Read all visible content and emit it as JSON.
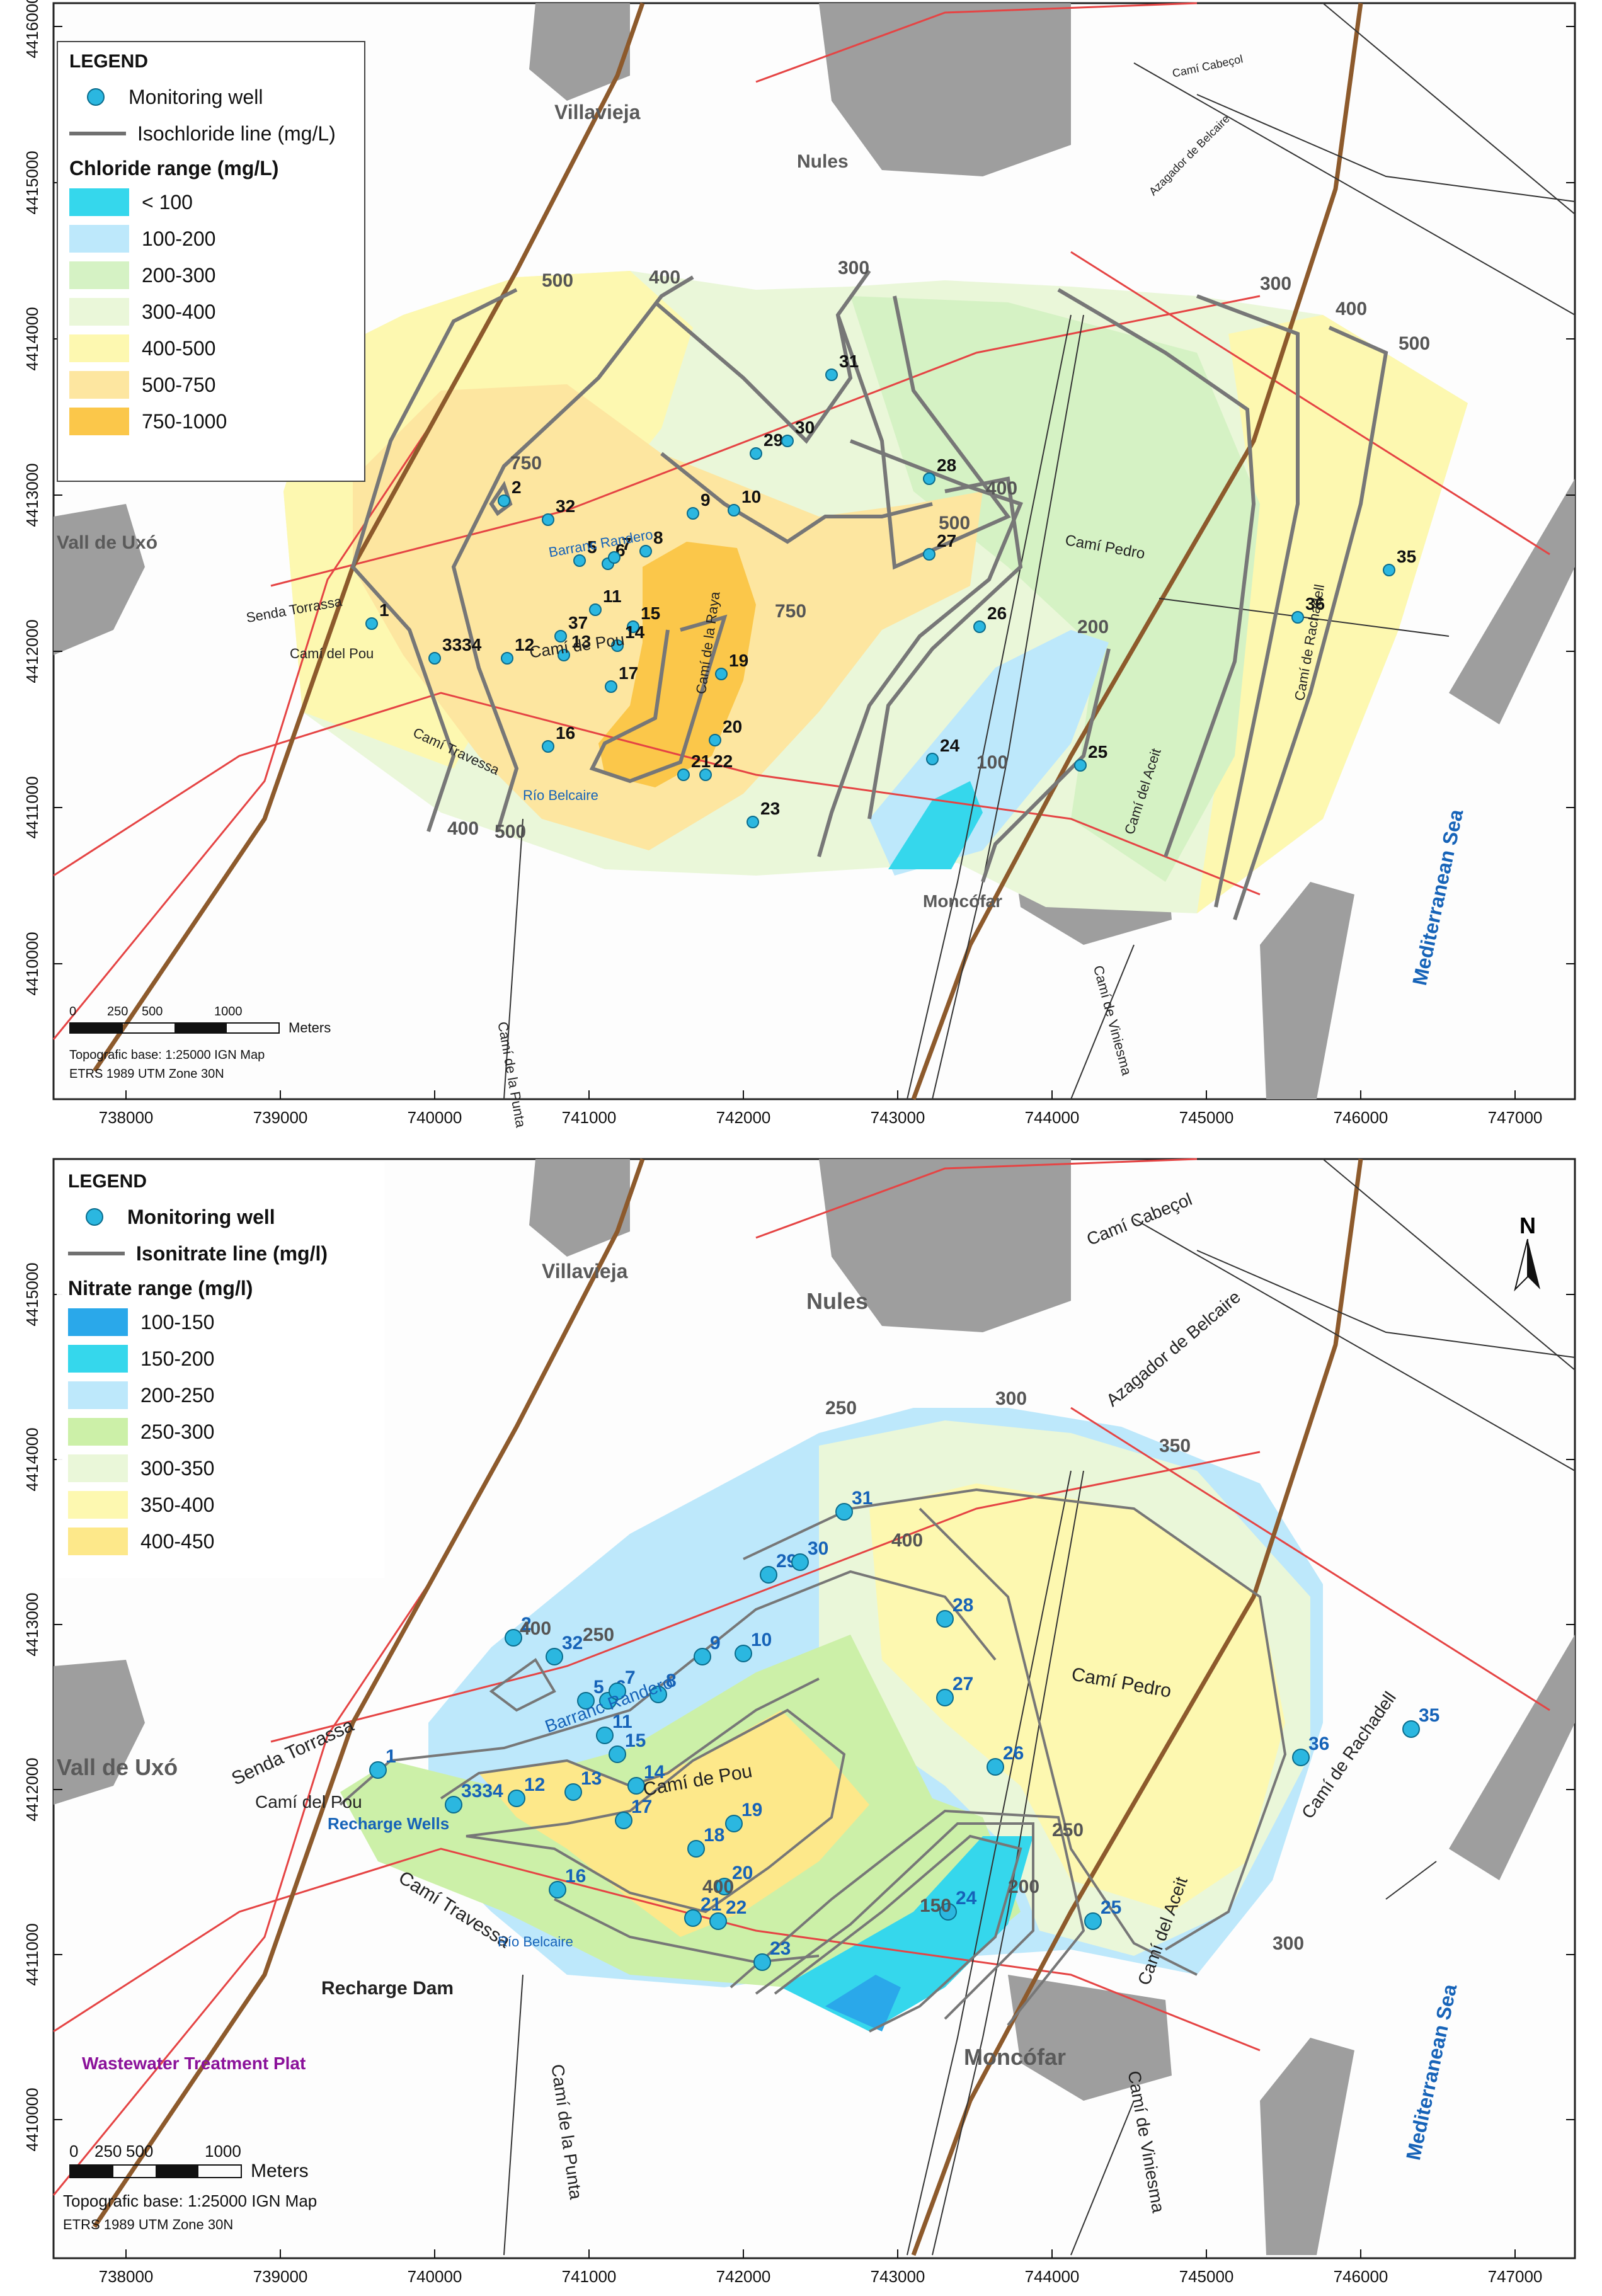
{
  "maps": [
    {
      "legend": {
        "title": "LEGEND",
        "well_label": "Monitoring well",
        "line_label": "Isochloride line (mg/L)",
        "range_title": "Chloride range (mg/L)",
        "classes": [
          {
            "label": "< 100",
            "color": "#35d7ec"
          },
          {
            "label": "100-200",
            "color": "#bde8fb"
          },
          {
            "label": "200-300",
            "color": "#d5f2c4"
          },
          {
            "label": "300-400",
            "color": "#eaf7d9"
          },
          {
            "label": "400-500",
            "color": "#fdf8b0"
          },
          {
            "label": "500-750",
            "color": "#fde6a0"
          },
          {
            "label": "750-1000",
            "color": "#fbc74a"
          }
        ]
      },
      "x_ticks": [
        "738000",
        "739000",
        "740000",
        "741000",
        "742000",
        "743000",
        "744000",
        "745000",
        "746000",
        "747000"
      ],
      "y_ticks": [
        "4410000",
        "4411000",
        "4412000",
        "4413000",
        "4414000",
        "4415000",
        "4416000"
      ],
      "places": {
        "villavieja": "Villavieja",
        "nules": "Nules",
        "vall": "Vall de Uxó",
        "moncofar": "Moncófar",
        "sea": "Mediterranean Sea"
      },
      "roads": {
        "torrassa": "Senda Torrassa",
        "pou1": "Camí del Pou",
        "pou2": "Camí de Pou",
        "travessa": "Camí Travessa",
        "belcaire": "Río Belcaire",
        "randero": "Barranc Randero",
        "raya": "Camí de la Raya",
        "pedro": "Camí Pedro",
        "rachadell": "Camí de Rachadell",
        "aceit": "Camí del Aceit",
        "viniesma": "Camí de Viniesma",
        "punta": "Camí de la Punta",
        "cabecol": "Camí Cabeçol",
        "belcaire2": "Azagador de Belcaire"
      },
      "contour_labels": [
        "500",
        "400",
        "300",
        "300",
        "400",
        "500",
        "750",
        "750",
        "500",
        "400",
        "200",
        "100",
        "400",
        "500"
      ],
      "wells": [
        "1",
        "2",
        "32",
        "5",
        "6",
        "7",
        "8",
        "9",
        "10",
        "11",
        "37",
        "15",
        "14",
        "12",
        "13",
        "3334",
        "17",
        "19",
        "16",
        "20",
        "21",
        "22",
        "23",
        "29",
        "30",
        "31",
        "28",
        "27",
        "26",
        "24",
        "25",
        "36",
        "35"
      ],
      "scale": {
        "ticks": [
          "0",
          "250",
          "500",
          "1000"
        ],
        "unit": "Meters"
      },
      "notes": [
        "Topografic base: 1:25000 IGN Map",
        "ETRS 1989 UTM Zone 30N"
      ]
    },
    {
      "legend": {
        "title": "LEGEND",
        "well_label": "Monitoring well",
        "line_label": "Isonitrate line (mg/l)",
        "range_title": "Nitrate range (mg/l)",
        "classes": [
          {
            "label": "100-150",
            "color": "#2aa8ea"
          },
          {
            "label": "150-200",
            "color": "#35d7ec"
          },
          {
            "label": "200-250",
            "color": "#bde8fb"
          },
          {
            "label": "250-300",
            "color": "#ccf0a8"
          },
          {
            "label": "300-350",
            "color": "#eaf7d9"
          },
          {
            "label": "350-400",
            "color": "#fdf8b0"
          },
          {
            "label": "400-450",
            "color": "#fde88a"
          }
        ]
      },
      "x_ticks": [
        "738000",
        "739000",
        "740000",
        "741000",
        "742000",
        "743000",
        "744000",
        "745000",
        "746000",
        "747000"
      ],
      "y_ticks": [
        "4410000",
        "4411000",
        "4412000",
        "4413000",
        "4414000",
        "4415000"
      ],
      "places": {
        "villavieja": "Villavieja",
        "nules": "Nules",
        "vall": "Vall de Uxó",
        "moncofar": "Moncófar",
        "sea": "Mediterranean Sea",
        "recharge_dam": "Recharge Dam",
        "recharge_wells": "Recharge Wells",
        "wwtp": "Wastewater Treatment Plat"
      },
      "roads": {
        "torrassa": "Senda Torrassa",
        "pou1": "Camí del Pou",
        "pou2": "Camí de Pou",
        "travessa": "Camí Travessa",
        "belcaire": "Río Belcaire",
        "randero": "Barranc Randero",
        "pedro": "Camí Pedro",
        "rachadell": "Camí de Rachadell",
        "aceit": "Camí del Aceit",
        "viniesma": "Camí de Viniesma",
        "punta": "Camí de la Punta",
        "cabecol": "Camí Cabeçol",
        "belcaire2": "Azagador de Belcaire"
      },
      "contour_labels": [
        "250",
        "300",
        "350",
        "400",
        "400",
        "250",
        "400",
        "150",
        "200",
        "250",
        "300"
      ],
      "wells": [
        "1",
        "2",
        "32",
        "5",
        "6",
        "7",
        "8",
        "9",
        "10",
        "11",
        "15",
        "14",
        "12",
        "13",
        "3334",
        "17",
        "18",
        "19",
        "16",
        "20",
        "21",
        "22",
        "23",
        "29",
        "30",
        "31",
        "28",
        "27",
        "26",
        "24",
        "25",
        "36",
        "35"
      ],
      "north": "N",
      "scale": {
        "ticks": [
          "0",
          "250",
          "500",
          "1000"
        ],
        "unit": "Meters"
      },
      "notes": [
        "Topografic base: 1:25000 IGN Map",
        "ETRS 1989 UTM Zone 30N"
      ]
    }
  ]
}
